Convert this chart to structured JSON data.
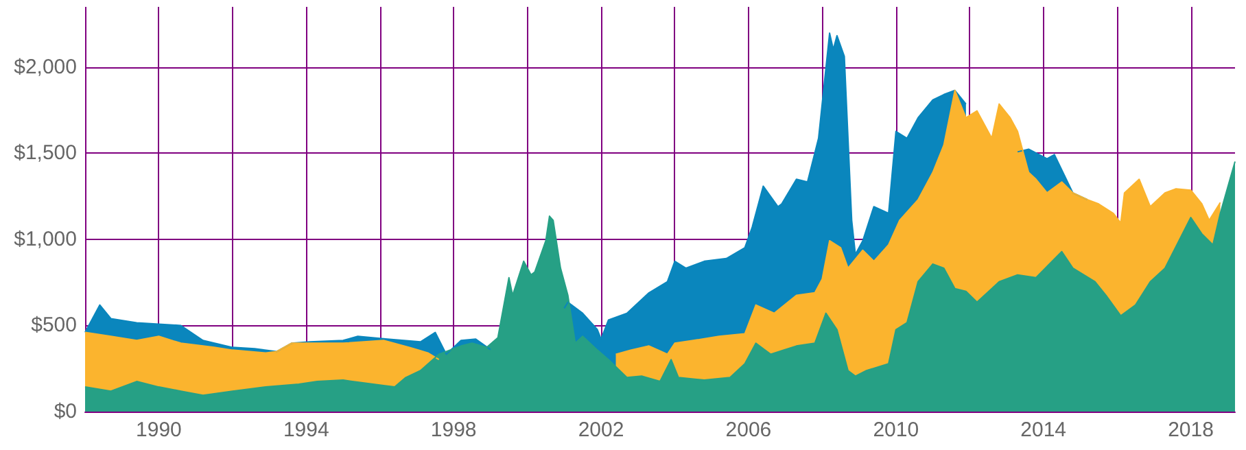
{
  "chart_data": {
    "type": "area",
    "xlim": [
      1988,
      2019.2
    ],
    "ylim": [
      0,
      2350
    ],
    "xticks": [
      {
        "value": 1988,
        "label": null
      },
      1990,
      {
        "value": 1992,
        "label": null
      },
      1994,
      {
        "value": 1996,
        "label": null
      },
      1998,
      {
        "value": 2000,
        "label": null
      },
      2002,
      {
        "value": 2004,
        "label": null
      },
      2006,
      {
        "value": 2008,
        "label": null
      },
      2010,
      {
        "value": 2012,
        "label": null
      },
      2014,
      {
        "value": 2016,
        "label": null
      },
      2018
    ],
    "yticks": [
      {
        "value": 0,
        "label": "$0"
      },
      {
        "value": 500,
        "label": "$500"
      },
      {
        "value": 1000,
        "label": "$1,000"
      },
      {
        "value": 1500,
        "label": "$1,500"
      },
      {
        "value": 2000,
        "label": "$2,000"
      }
    ],
    "grid": true,
    "marker": "none",
    "series": [
      {
        "color": "#0a86bd",
        "x": [
          1988.0,
          1988.4,
          1988.7,
          1989.4,
          1990.0,
          1990.6,
          1991.2,
          1992.0,
          1992.6,
          1993.2,
          1993.6,
          1994.1,
          1995.0,
          1995.4,
          1996.2,
          1997.1,
          1997.5,
          1997.8,
          1998.2,
          1998.6,
          1999.0,
          1999.6,
          2000.2,
          2000.6,
          2001.0,
          2001.1,
          2001.5,
          2001.9,
          2002.0,
          2002.2,
          2002.7,
          2003.3,
          2003.8,
          2004.0,
          2004.3,
          2004.8,
          2005.4,
          2005.9,
          2006.1,
          2006.4,
          2006.8,
          2006.9,
          2007.3,
          2007.6,
          2007.9,
          2008.2,
          2008.3,
          2008.4,
          2008.6,
          2008.8,
          2008.9,
          2009.1,
          2009.4,
          2009.8,
          2010.0,
          2010.3,
          2010.6,
          2011.0,
          2011.3,
          2011.6,
          2011.9,
          2012.4,
          2013.3,
          2013.6,
          2014.1,
          2014.3,
          2014.8,
          2015.2
        ],
        "values": [
          460,
          619,
          540,
          516,
          508,
          500,
          413,
          373,
          365,
          349,
          397,
          405,
          413,
          437,
          421,
          405,
          460,
          333,
          413,
          421,
          360,
          null,
          null,
          null,
          600,
          635,
          571,
          476,
          421,
          532,
          571,
          690,
          754,
          873,
          833,
          873,
          889,
          952,
          1071,
          1309,
          1190,
          1206,
          1349,
          1333,
          1587,
          2198,
          2103,
          2183,
          2063,
          1111,
          913,
          992,
          1190,
          1151,
          1627,
          1587,
          1706,
          1810,
          1841,
          1865,
          1786,
          null,
          1508,
          1524,
          1468,
          1492,
          1270,
          1230
        ]
      },
      {
        "color": "#fbb42e",
        "x": [
          1988.0,
          1988.7,
          1989.4,
          1990.0,
          1990.6,
          1991.5,
          1992.0,
          1992.9,
          1993.2,
          1993.6,
          1994.1,
          1995.0,
          1996.1,
          1996.8,
          1997.3,
          1997.6,
          1997.8,
          2002.4,
          2002.8,
          2003.3,
          2003.8,
          2004.0,
          2004.5,
          2005.2,
          2005.9,
          2006.2,
          2006.7,
          2007.3,
          2007.8,
          2008.0,
          2008.2,
          2008.5,
          2008.7,
          2009.1,
          2009.4,
          2009.8,
          2010.1,
          2010.6,
          2011.0,
          2011.3,
          2011.6,
          2011.9,
          2012.2,
          2012.6,
          2012.8,
          2013.1,
          2013.3,
          2013.6,
          2013.8,
          2014.1,
          2014.5,
          2014.8,
          2015.2,
          2015.5,
          2015.9,
          2016.1,
          2016.2,
          2016.6,
          2016.9,
          2017.3,
          2017.6,
          2018.0,
          2018.3,
          2018.5,
          2018.8
        ],
        "values": [
          460,
          437,
          413,
          437,
          397,
          373,
          357,
          341,
          349,
          397,
          397,
          397,
          413,
          373,
          341,
          302,
          null,
          333,
          357,
          381,
          333,
          397,
          413,
          437,
          452,
          619,
          571,
          675,
          690,
          770,
          992,
          952,
          833,
          937,
          873,
          968,
          1111,
          1230,
          1389,
          1548,
          1865,
          1706,
          1746,
          1587,
          1786,
          1706,
          1627,
          1389,
          1349,
          1270,
          1333,
          1270,
          1230,
          1206,
          1151,
          1095,
          1270,
          1349,
          1190,
          1270,
          1294,
          1286,
          1206,
          1111,
          1214
        ]
      },
      {
        "color": "#26a085",
        "x": [
          1988.0,
          1988.7,
          1989.4,
          1990.0,
          1990.6,
          1991.2,
          1992.0,
          1992.9,
          1993.8,
          1994.3,
          1995.0,
          1996.1,
          1996.4,
          1996.7,
          1997.1,
          1997.6,
          1998.2,
          1998.5,
          1998.9,
          1999.2,
          1999.5,
          1999.6,
          1999.9,
          2000.1,
          2000.2,
          2000.5,
          2000.6,
          2000.7,
          2000.9,
          2001.1,
          2001.3,
          2001.5,
          2001.9,
          2002.2,
          2002.7,
          2003.1,
          2003.6,
          2003.9,
          2004.1,
          2004.8,
          2005.5,
          2005.9,
          2006.2,
          2006.6,
          2007.3,
          2007.8,
          2008.1,
          2008.4,
          2008.7,
          2008.9,
          2009.2,
          2009.8,
          2010.0,
          2010.3,
          2010.6,
          2011.0,
          2011.3,
          2011.6,
          2011.9,
          2012.2,
          2012.6,
          2012.8,
          2013.3,
          2013.8,
          2014.5,
          2014.8,
          2015.4,
          2015.7,
          2016.1,
          2016.5,
          2016.9,
          2017.3,
          2018.0,
          2018.3,
          2018.6,
          2018.8,
          2019.2
        ],
        "values": [
          143,
          119,
          175,
          143,
          119,
          95,
          119,
          143,
          159,
          175,
          183,
          151,
          143,
          198,
          238,
          333,
          381,
          397,
          373,
          429,
          778,
          675,
          873,
          794,
          810,
          992,
          1135,
          1111,
          833,
          675,
          397,
          437,
          357,
          302,
          198,
          206,
          175,
          302,
          198,
          183,
          198,
          278,
          397,
          333,
          381,
          397,
          571,
          476,
          238,
          206,
          238,
          278,
          476,
          516,
          754,
          857,
          833,
          714,
          698,
          635,
          714,
          754,
          794,
          778,
          929,
          833,
          754,
          675,
          556,
          619,
          754,
          833,
          1127,
          1032,
          968,
          1151,
          1452
        ]
      }
    ]
  }
}
